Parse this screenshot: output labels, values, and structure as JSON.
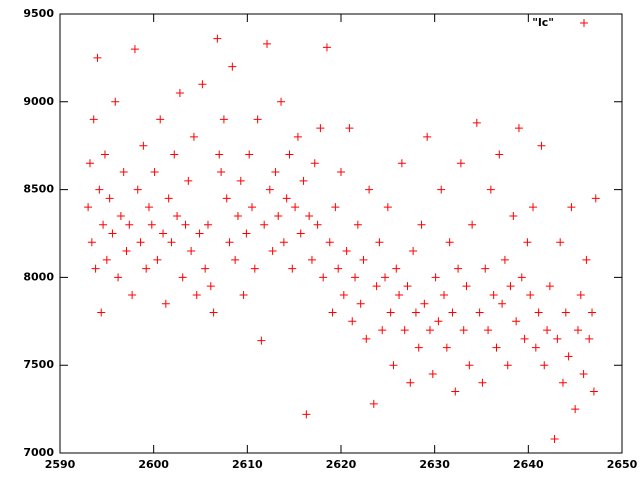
{
  "chart_data": {
    "type": "scatter",
    "x": [
      2593.0,
      2593.2,
      2593.4,
      2593.6,
      2593.8,
      2594.0,
      2594.2,
      2594.4,
      2594.6,
      2594.8,
      2595.0,
      2595.3,
      2595.6,
      2595.9,
      2596.2,
      2596.5,
      2596.8,
      2597.1,
      2597.4,
      2597.7,
      2598.0,
      2598.3,
      2598.6,
      2598.9,
      2599.2,
      2599.5,
      2599.8,
      2600.1,
      2600.4,
      2600.7,
      2601.0,
      2601.3,
      2601.6,
      2601.9,
      2602.2,
      2602.5,
      2602.8,
      2603.1,
      2603.4,
      2603.7,
      2604.0,
      2604.3,
      2604.6,
      2604.9,
      2605.2,
      2605.5,
      2605.8,
      2606.1,
      2606.4,
      2606.8,
      2607.0,
      2607.2,
      2607.5,
      2607.8,
      2608.1,
      2608.4,
      2608.7,
      2609.0,
      2609.3,
      2609.6,
      2609.9,
      2610.2,
      2610.5,
      2610.8,
      2611.1,
      2611.5,
      2611.8,
      2612.1,
      2612.4,
      2612.7,
      2613.0,
      2613.3,
      2613.6,
      2613.9,
      2614.2,
      2614.5,
      2614.8,
      2615.1,
      2615.4,
      2615.7,
      2616.0,
      2616.3,
      2616.6,
      2616.9,
      2617.2,
      2617.5,
      2617.8,
      2618.1,
      2618.5,
      2618.8,
      2619.1,
      2619.4,
      2619.7,
      2620.0,
      2620.3,
      2620.6,
      2620.9,
      2621.2,
      2621.5,
      2621.8,
      2622.1,
      2622.4,
      2622.7,
      2623.0,
      2623.5,
      2623.8,
      2624.1,
      2624.4,
      2624.7,
      2625.0,
      2625.3,
      2625.6,
      2625.9,
      2626.2,
      2626.5,
      2626.8,
      2627.1,
      2627.4,
      2627.7,
      2628.0,
      2628.3,
      2628.6,
      2628.9,
      2629.2,
      2629.5,
      2629.8,
      2630.1,
      2630.4,
      2630.7,
      2631.0,
      2631.3,
      2631.6,
      2631.9,
      2632.2,
      2632.5,
      2632.8,
      2633.1,
      2633.4,
      2633.7,
      2634.0,
      2634.5,
      2634.8,
      2635.1,
      2635.4,
      2635.7,
      2636.0,
      2636.3,
      2636.6,
      2636.9,
      2637.2,
      2637.5,
      2637.8,
      2638.1,
      2638.4,
      2638.7,
      2639.0,
      2639.3,
      2639.6,
      2639.9,
      2640.2,
      2640.5,
      2640.8,
      2641.1,
      2641.4,
      2641.7,
      2642.0,
      2642.3,
      2642.8,
      2643.1,
      2643.4,
      2643.7,
      2644.0,
      2644.3,
      2644.6,
      2645.0,
      2645.3,
      2645.6,
      2645.9,
      2646.2,
      2646.5,
      2646.8,
      2647.0,
      2647.2
    ],
    "series": [
      {
        "name": "\"lc\"",
        "color": "#ff0000",
        "values": [
          8400,
          8650,
          8200,
          8900,
          8050,
          9250,
          8500,
          7800,
          8300,
          8700,
          8100,
          8450,
          8250,
          9000,
          8000,
          8350,
          8600,
          8150,
          8300,
          7900,
          9300,
          8500,
          8200,
          8750,
          8050,
          8400,
          8300,
          8600,
          8100,
          8900,
          8250,
          7850,
          8450,
          8200,
          8700,
          8350,
          9050,
          8000,
          8300,
          8550,
          8150,
          8800,
          7900,
          8250,
          9100,
          8050,
          8300,
          7950,
          7800,
          9360,
          8700,
          8600,
          8900,
          8450,
          8200,
          9200,
          8100,
          8350,
          8550,
          7900,
          8250,
          8700,
          8400,
          8050,
          8900,
          7640,
          8300,
          9330,
          8500,
          8150,
          8600,
          8350,
          9000,
          8200,
          8450,
          8700,
          8050,
          8400,
          8800,
          8250,
          8550,
          7220,
          8350,
          8100,
          8650,
          8300,
          8850,
          8000,
          9310,
          8200,
          7800,
          8400,
          8050,
          8600,
          7900,
          8150,
          8850,
          7750,
          8000,
          8300,
          7850,
          8100,
          7650,
          8500,
          7280,
          7950,
          8200,
          7700,
          8000,
          8400,
          7800,
          7500,
          8050,
          7900,
          8650,
          7700,
          7950,
          7400,
          8150,
          7800,
          7600,
          8300,
          7850,
          8800,
          7700,
          7450,
          8000,
          7750,
          8500,
          7900,
          7600,
          8200,
          7800,
          7350,
          8050,
          8650,
          7700,
          7950,
          7500,
          8300,
          8880,
          7800,
          7400,
          8050,
          7700,
          8500,
          7900,
          7600,
          8700,
          7850,
          8100,
          7500,
          7950,
          8350,
          7750,
          8850,
          8000,
          7650,
          8200,
          7900,
          8400,
          7600,
          7800,
          8750,
          7500,
          7700,
          7950,
          7080,
          7650,
          8200,
          7400,
          7800,
          7550,
          8400,
          7250,
          7700,
          7900,
          7450,
          8100,
          7650,
          7800,
          7350,
          8450
        ]
      }
    ],
    "xlim": [
      2590,
      2650
    ],
    "xticks": [
      2590,
      2600,
      2610,
      2620,
      2630,
      2640,
      2650
    ],
    "ylim": [
      7000,
      9500
    ],
    "yticks": [
      7000,
      7500,
      8000,
      8500,
      9000,
      9500
    ],
    "grid": false,
    "legend": "top-right"
  }
}
